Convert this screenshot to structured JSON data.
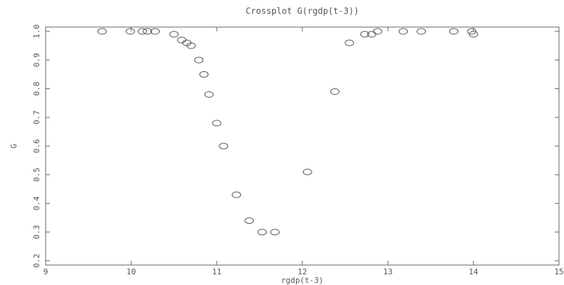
{
  "chart_data": {
    "type": "scatter",
    "title": "Crossplot G(rgdp(t-3))",
    "x_label": "rgdp(t-3)",
    "y_label": "G",
    "color": "#555555",
    "x": [
      9.66,
      9.99,
      10.13,
      10.19,
      10.28,
      10.5,
      10.59,
      10.65,
      10.7,
      10.79,
      10.85,
      10.91,
      11.0,
      11.08,
      11.23,
      11.38,
      11.53,
      11.68,
      12.06,
      12.38,
      12.55,
      12.73,
      12.81,
      12.88,
      13.18,
      13.39,
      13.77,
      13.98,
      14.0
    ],
    "values": [
      1.0,
      1.0,
      1.0,
      1.0,
      1.0,
      0.99,
      0.97,
      0.96,
      0.95,
      0.9,
      0.85,
      0.78,
      0.68,
      0.6,
      0.43,
      0.34,
      0.3,
      0.3,
      0.51,
      0.79,
      0.96,
      0.99,
      0.99,
      1.0,
      1.0,
      1.0,
      1.0,
      1.0,
      0.99
    ],
    "xlim": [
      9,
      15
    ],
    "ylim": [
      0.185,
      1.015
    ],
    "xticks": [
      9,
      10,
      11,
      12,
      13,
      14,
      15
    ],
    "yticks": [
      0.2,
      0.3,
      0.4,
      0.5,
      0.6,
      0.7,
      0.8,
      0.9,
      {
        "value": 1,
        "label": "1.0"
      }
    ]
  }
}
